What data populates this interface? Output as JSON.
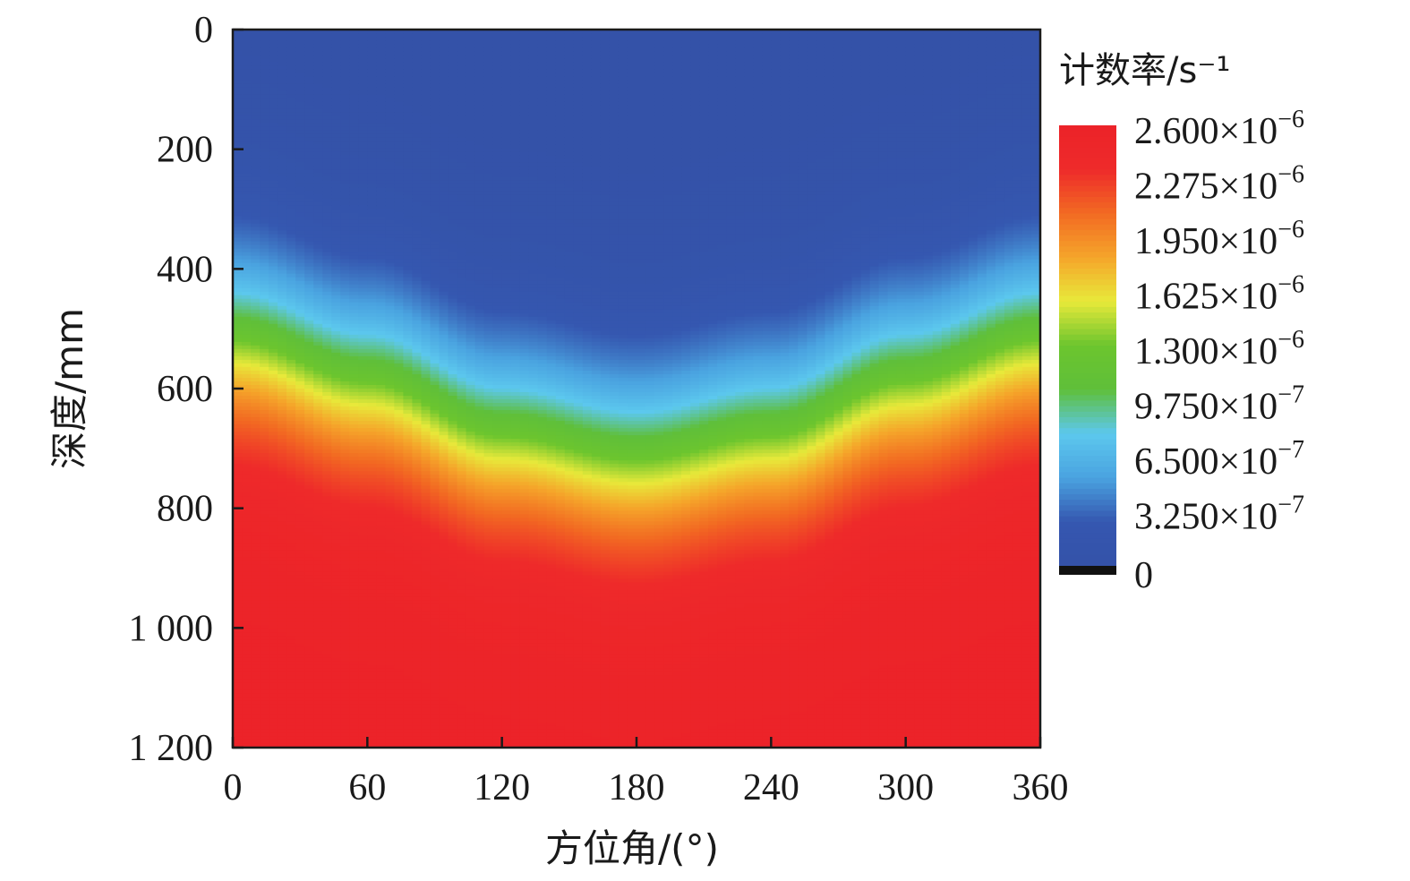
{
  "chart_data": {
    "type": "heatmap",
    "title": "",
    "xlabel": "方位角/(°)",
    "ylabel": "深度/mm",
    "xlim": [
      0,
      360
    ],
    "ylim": [
      0,
      1200
    ],
    "y_inverted": true,
    "x_ticks": [
      "0",
      "60",
      "120",
      "180",
      "240",
      "300",
      "360"
    ],
    "y_ticks": [
      "0",
      "200",
      "400",
      "600",
      "800",
      "1 000",
      "1 200"
    ],
    "x_tick_values": [
      0,
      60,
      120,
      180,
      240,
      300,
      360
    ],
    "y_tick_values": [
      0,
      200,
      400,
      600,
      800,
      1000,
      1200
    ],
    "colorbar": {
      "title": "计数率/s⁻¹",
      "min": 0,
      "max": 2.6e-06,
      "tick_values": [
        2.6e-06,
        2.275e-06,
        1.95e-06,
        1.625e-06,
        1.3e-06,
        9.75e-07,
        6.5e-07,
        3.25e-07,
        0
      ],
      "tick_mantissas": [
        "2.600×10",
        "2.275×10",
        "1.950×10",
        "1.625×10",
        "1.300×10",
        "9.750×10",
        "6.500×10",
        "3.250×10",
        "0"
      ],
      "tick_exponents": [
        "−6",
        "−6",
        "−6",
        "−6",
        "−6",
        "−7",
        "−7",
        "−7",
        ""
      ],
      "colors": [
        "#3452a8",
        "#3557b0",
        "#4aa3e0",
        "#5cc8ee",
        "#5fbf3a",
        "#6cc52e",
        "#e8e93a",
        "#f5a52a",
        "#f26a22",
        "#ee2a2a",
        "#ec2329"
      ],
      "zero_color": "#111111"
    },
    "field_description_points": {
      "azimuth_deg": [
        0,
        60,
        120,
        180,
        240,
        300,
        360
      ],
      "depth_mm_at_1.3e-6": [
        520,
        590,
        680,
        720,
        680,
        590,
        520
      ]
    }
  }
}
